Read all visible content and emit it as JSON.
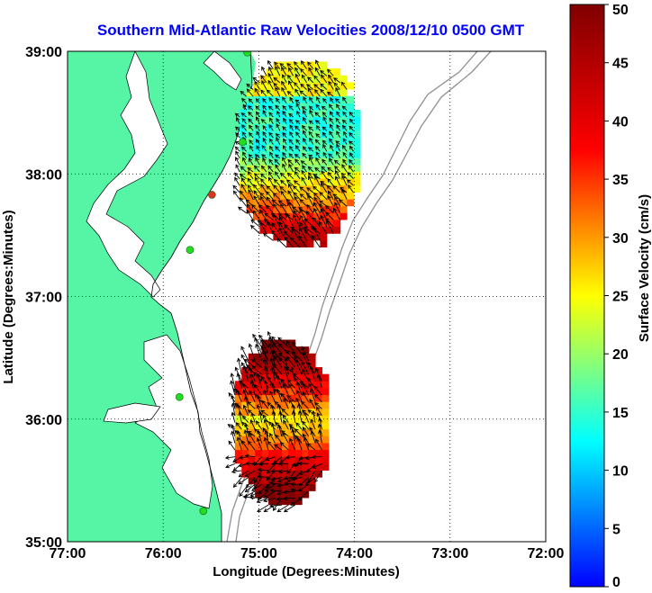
{
  "map": {
    "title": "Southern Mid-Atlantic Raw Velocities 2008/12/10 0500 GMT",
    "xlabel": "Longitude (Degrees:Minutes)",
    "ylabel": "Latitude (Degrees:Minutes)",
    "lon_range": [
      -77,
      -72
    ],
    "lat_range": [
      35,
      39
    ],
    "x_ticks": [
      "77:00",
      "76:00",
      "75:00",
      "74:00",
      "73:00",
      "72:00"
    ],
    "y_ticks": [
      "35:00",
      "36:00",
      "37:00",
      "38:00",
      "39:00"
    ],
    "grid": "dotted",
    "land_color": "#55f5a5",
    "title_color": "#0000ff"
  },
  "colorbar": {
    "label": "Surface Velocity (cm/s)",
    "ticks": [
      "0",
      "5",
      "10",
      "15",
      "20",
      "25",
      "30",
      "35",
      "40",
      "45",
      "50"
    ],
    "range": [
      0,
      50
    ],
    "colormap": "jet"
  },
  "stations": [
    {
      "lon": -75.12,
      "lat": 38.99,
      "color": "#22dd22"
    },
    {
      "lon": -75.17,
      "lat": 38.26,
      "color": "#22dd22"
    },
    {
      "lon": -75.49,
      "lat": 37.83,
      "color": "#dd3322"
    },
    {
      "lon": -75.72,
      "lat": 37.38,
      "color": "#22dd22"
    },
    {
      "lon": -75.83,
      "lat": 36.18,
      "color": "#22dd22"
    },
    {
      "lon": -75.58,
      "lat": 35.25,
      "color": "#22dd22"
    }
  ],
  "velocity_fields": [
    {
      "region": "north",
      "lon_range": [
        -75.2,
        -74.0
      ],
      "lat_range": [
        37.4,
        38.9
      ],
      "speed_range": [
        8,
        50
      ]
    },
    {
      "region": "south",
      "lon_range": [
        -75.25,
        -74.3
      ],
      "lat_range": [
        35.3,
        36.6
      ],
      "speed_range": [
        15,
        50
      ]
    }
  ]
}
